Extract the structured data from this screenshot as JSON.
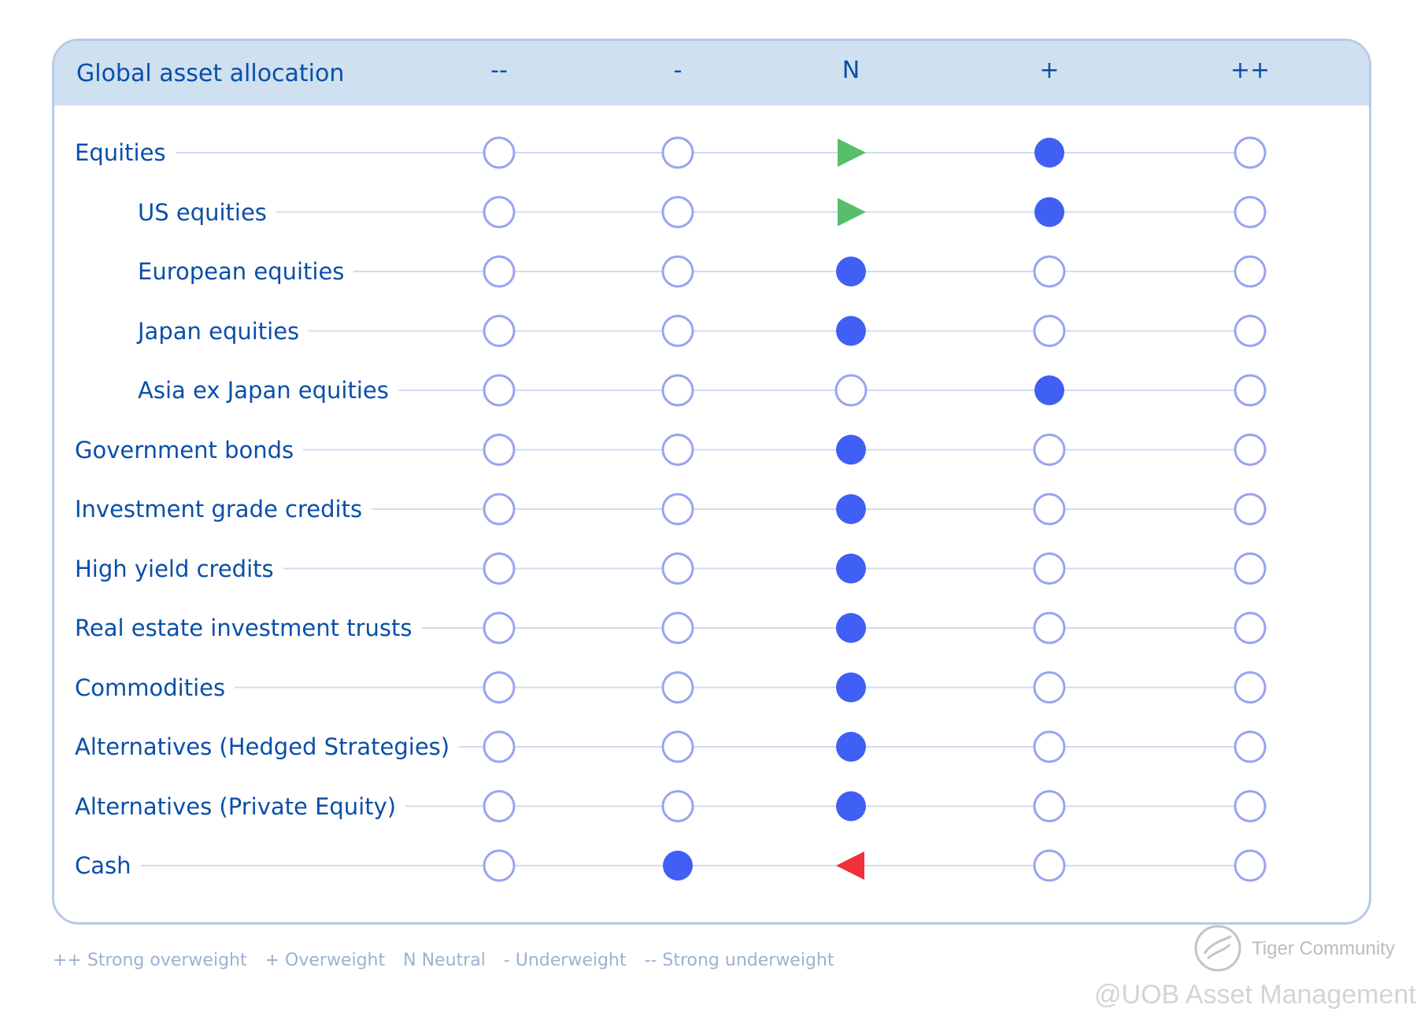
{
  "chart_data": {
    "type": "table",
    "title": "Global asset allocation",
    "columns": [
      "--",
      "-",
      "N",
      "+",
      "++"
    ],
    "rows": [
      {
        "label": "Equities",
        "indent": false,
        "position": "+",
        "arrow": "right"
      },
      {
        "label": "US equities",
        "indent": true,
        "position": "+",
        "arrow": "right"
      },
      {
        "label": "European equities",
        "indent": true,
        "position": "N",
        "arrow": ""
      },
      {
        "label": "Japan equities",
        "indent": true,
        "position": "N",
        "arrow": ""
      },
      {
        "label": "Asia ex Japan equities",
        "indent": true,
        "position": "+",
        "arrow": ""
      },
      {
        "label": "Government bonds",
        "indent": false,
        "position": "N",
        "arrow": ""
      },
      {
        "label": "Investment grade credits",
        "indent": false,
        "position": "N",
        "arrow": ""
      },
      {
        "label": "High yield credits",
        "indent": false,
        "position": "N",
        "arrow": ""
      },
      {
        "label": "Real estate investment trusts",
        "indent": false,
        "position": "N",
        "arrow": ""
      },
      {
        "label": "Commodities",
        "indent": false,
        "position": "N",
        "arrow": ""
      },
      {
        "label": "Alternatives (Hedged Strategies)",
        "indent": false,
        "position": "N",
        "arrow": ""
      },
      {
        "label": "Alternatives (Private Equity)",
        "indent": false,
        "position": "N",
        "arrow": ""
      },
      {
        "label": "Cash",
        "indent": false,
        "position": "-",
        "arrow": "left"
      }
    ],
    "legend": [
      "++ Strong overweight",
      "+ Overweight",
      "N Neutral",
      "- Underweight",
      "-- Strong underweight"
    ],
    "colors": {
      "filled": "#3f5ff5",
      "outline": "#98a4f0",
      "line": "#cfdcef",
      "arrow_up": "#57be6c",
      "arrow_down": "#f0303a",
      "text": "#0a4fa8"
    }
  },
  "watermark": {
    "community": "Tiger Community",
    "source": "@UOB Asset Management"
  }
}
